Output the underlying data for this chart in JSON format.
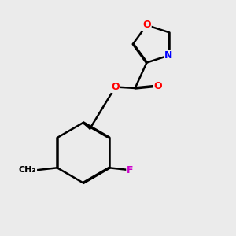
{
  "background_color": "#ebebeb",
  "bond_color": "#000000",
  "atom_colors": {
    "O": "#ff0000",
    "N": "#0000ff",
    "F": "#cc00cc",
    "C": "#000000"
  },
  "figsize": [
    3.0,
    3.0
  ],
  "dpi": 100
}
